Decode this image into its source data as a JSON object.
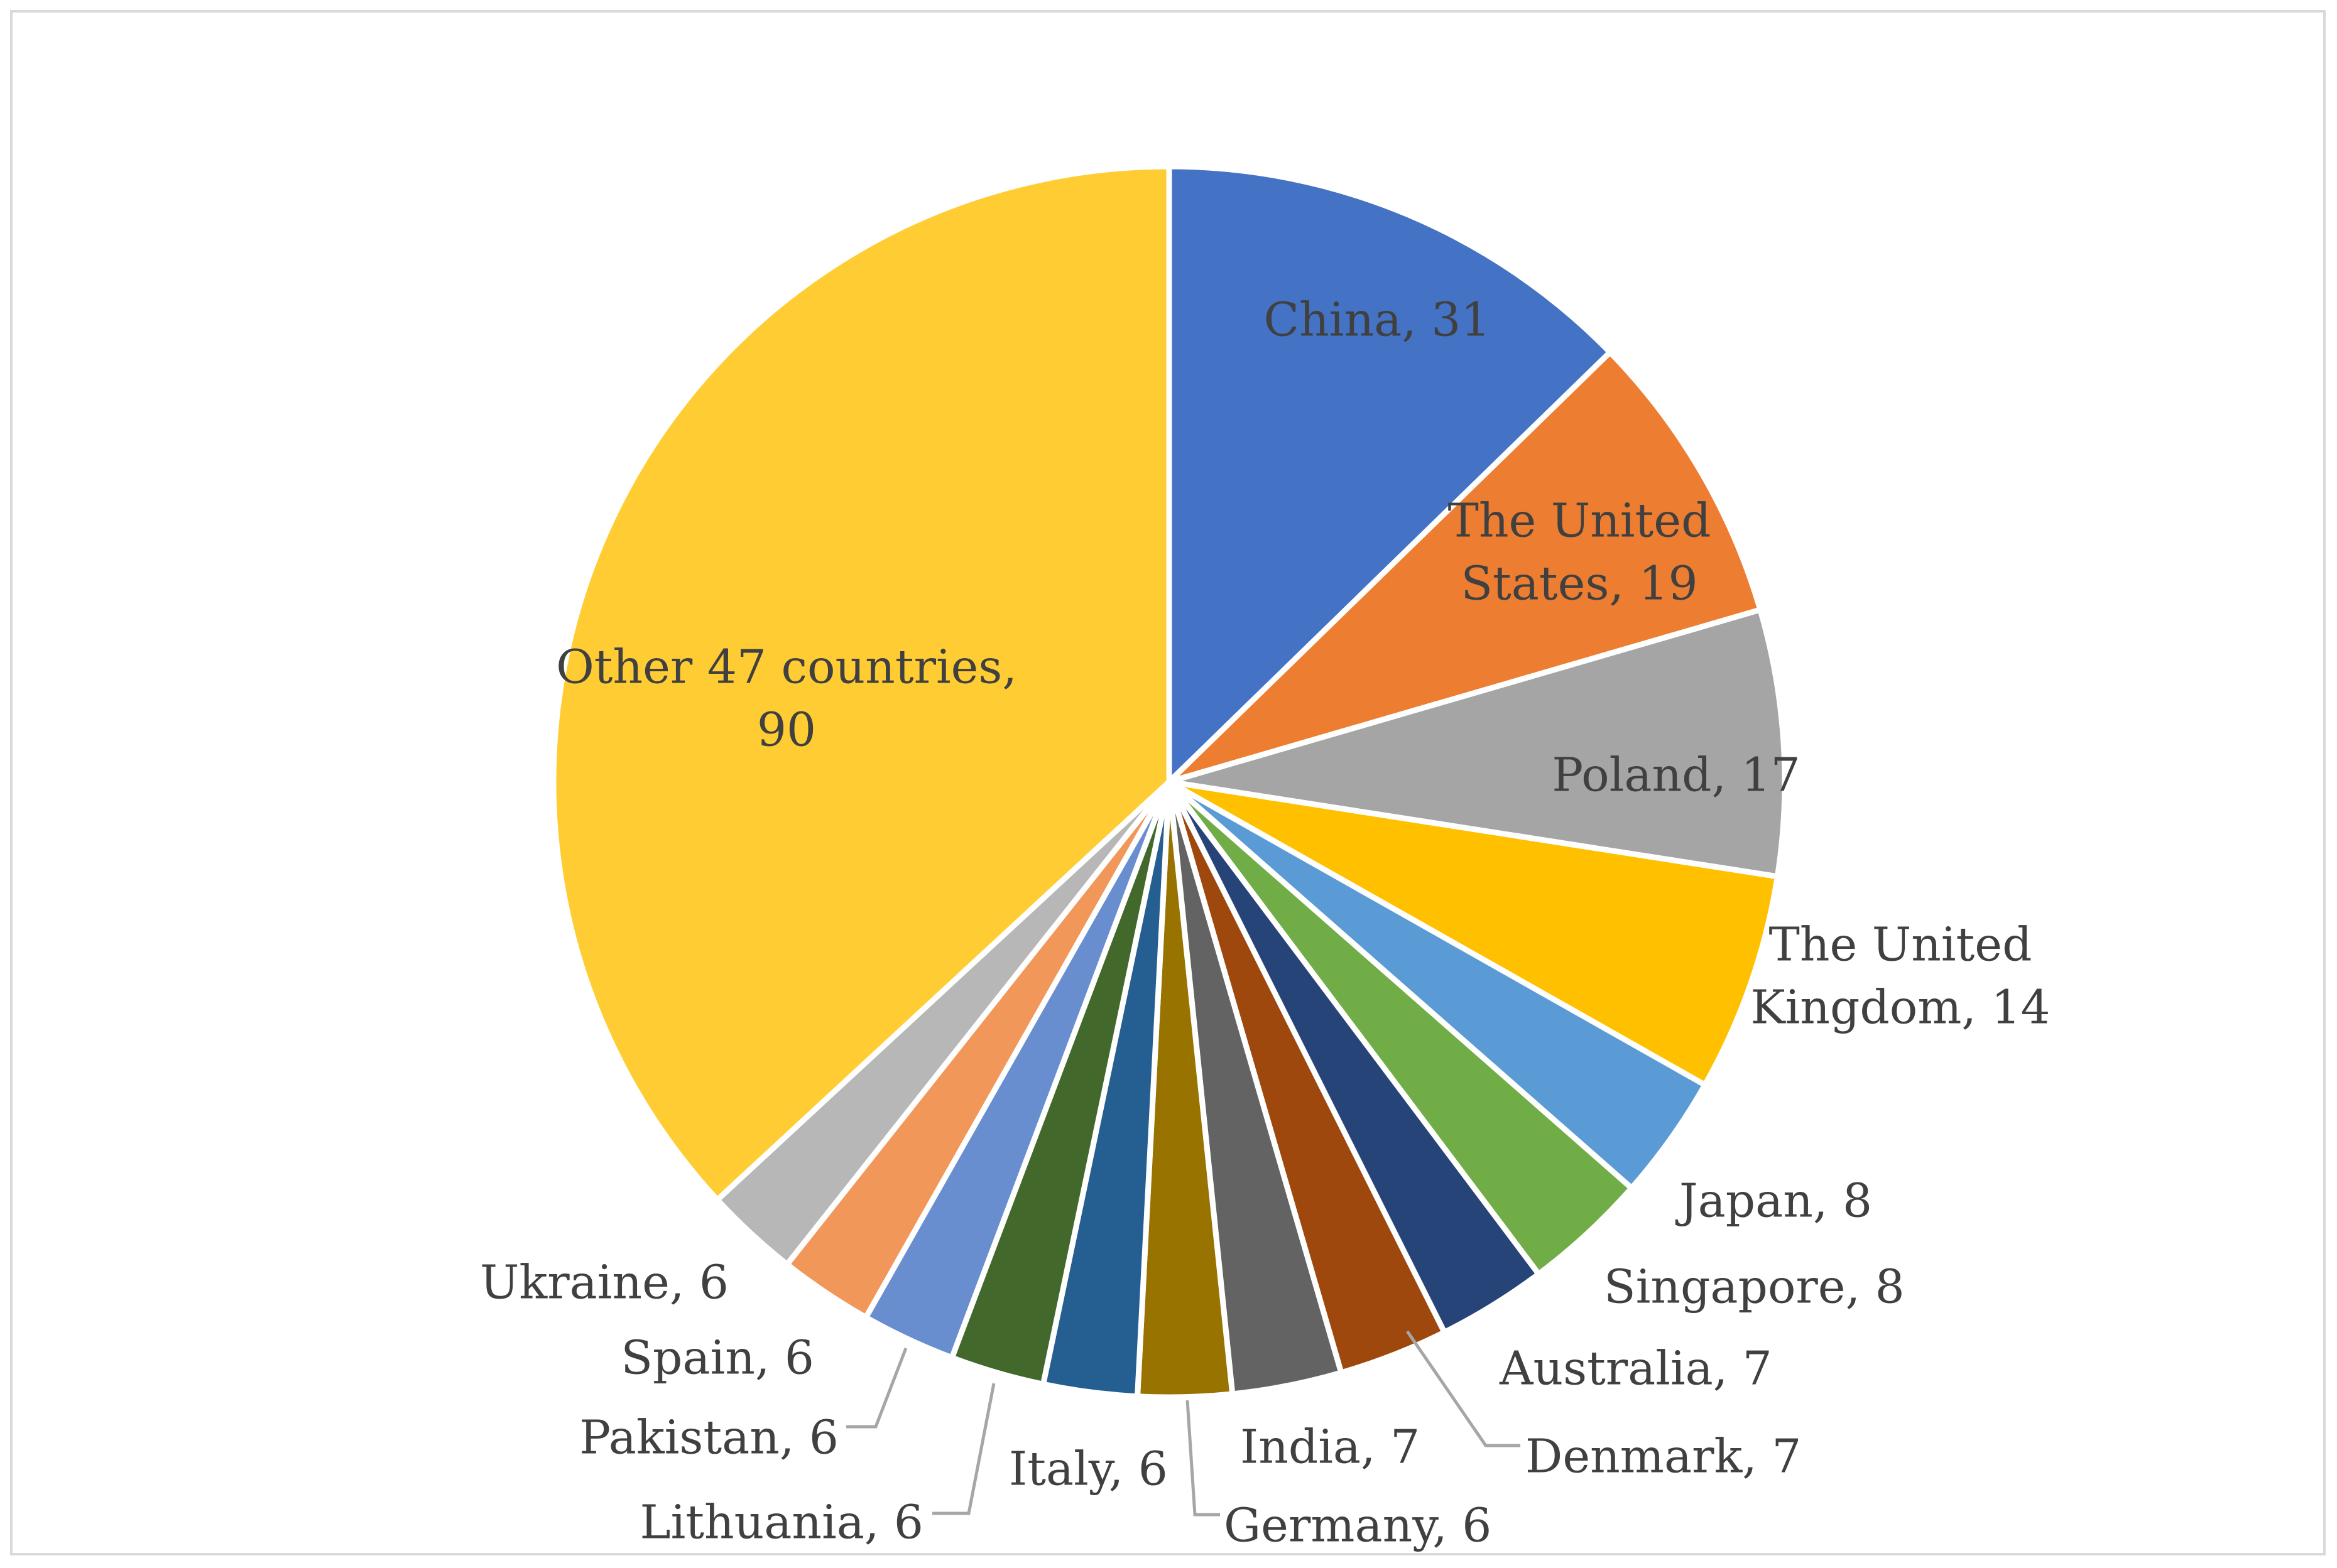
{
  "chart_data": {
    "type": "pie",
    "title": "",
    "slices": [
      {
        "label": "China",
        "value": 31,
        "color": "#4472c4",
        "label_lines": [
          "China, 31"
        ],
        "label_inside": true
      },
      {
        "label": "The United States",
        "value": 19,
        "color": "#ed7d31",
        "label_lines": [
          "The United",
          "States, 19"
        ],
        "label_inside": true
      },
      {
        "label": "Poland",
        "value": 17,
        "color": "#a5a5a5",
        "label_lines": [
          "Poland, 17"
        ],
        "label_inside": true
      },
      {
        "label": "The United Kingdom",
        "value": 14,
        "color": "#ffc000",
        "label_lines": [
          "The United",
          "Kingdom, 14"
        ],
        "label_inside": false
      },
      {
        "label": "Japan",
        "value": 8,
        "color": "#5b9bd5",
        "label_lines": [
          "Japan, 8"
        ],
        "label_inside": false
      },
      {
        "label": "Singapore",
        "value": 8,
        "color": "#70ad47",
        "label_lines": [
          "Singapore, 8"
        ],
        "label_inside": false
      },
      {
        "label": "Australia",
        "value": 7,
        "color": "#264478",
        "label_lines": [
          "Australia, 7"
        ],
        "label_inside": false
      },
      {
        "label": "Denmark",
        "value": 7,
        "color": "#9e480e",
        "label_lines": [
          "Denmark, 7"
        ],
        "label_inside": false
      },
      {
        "label": "India",
        "value": 7,
        "color": "#636363",
        "label_lines": [
          "India, 7"
        ],
        "label_inside": false
      },
      {
        "label": "Germany",
        "value": 6,
        "color": "#997300",
        "label_lines": [
          "Germany, 6"
        ],
        "label_inside": false
      },
      {
        "label": "Italy",
        "value": 6,
        "color": "#255e91",
        "label_lines": [
          "Italy, 6"
        ],
        "label_inside": false
      },
      {
        "label": "Lithuania",
        "value": 6,
        "color": "#43682b",
        "label_lines": [
          "Lithuania, 6"
        ],
        "label_inside": false
      },
      {
        "label": "Pakistan",
        "value": 6,
        "color": "#698ed0",
        "label_lines": [
          "Pakistan, 6"
        ],
        "label_inside": false
      },
      {
        "label": "Spain",
        "value": 6,
        "color": "#f1975a",
        "label_lines": [
          "Spain, 6"
        ],
        "label_inside": false
      },
      {
        "label": "Ukraine",
        "value": 6,
        "color": "#b7b7b7",
        "label_lines": [
          "Ukraine, 6"
        ],
        "label_inside": false
      },
      {
        "label": "Other 47 countries",
        "value": 90,
        "color": "#ffcd33",
        "label_lines": [
          "Other 47 countries,",
          "90"
        ],
        "label_inside": true
      }
    ],
    "start_angle": "12 o'clock",
    "direction": "clockwise",
    "legend": "none",
    "data_labels": "category name, value"
  }
}
